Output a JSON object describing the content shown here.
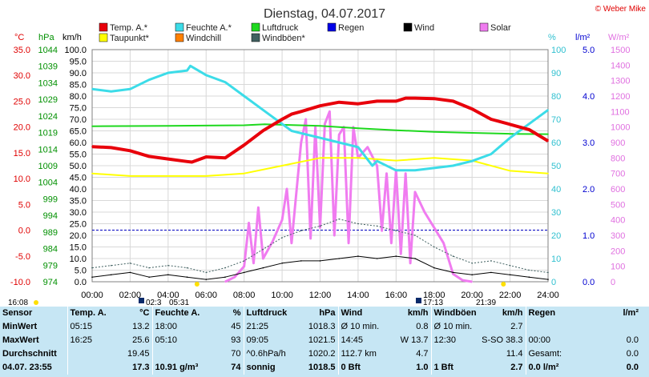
{
  "header": {
    "title": "Dienstag, 04.07.2017",
    "copyright": "© Weber Mike"
  },
  "legend": [
    {
      "label": "Temp. A.*",
      "color": "#e8000b"
    },
    {
      "label": "Feuchte A.*",
      "color": "#3cdce8"
    },
    {
      "label": "Luftdruck",
      "color": "#1ed81e"
    },
    {
      "label": "Regen",
      "color": "#0000e8"
    },
    {
      "label": "Wind",
      "color": "#000000"
    },
    {
      "label": "Solar",
      "color": "#f07cf0"
    },
    {
      "label": "Taupunkt*",
      "color": "#ffff00"
    },
    {
      "label": "Windchill",
      "color": "#ff8000"
    },
    {
      "label": "Windböen*",
      "color": "#406060"
    }
  ],
  "axes": {
    "temp_unit": "°C",
    "hpa_unit": "hPa",
    "kmh_unit": "km/h",
    "pct_unit": "%",
    "rain_unit": "l/m²",
    "solar_unit": "W/m²",
    "temp_ticks": [
      "35.0",
      "30.0",
      "25.0",
      "20.0",
      "15.0",
      "10.0",
      "5.0",
      "0.0",
      "-5.0",
      "-10.0"
    ],
    "hpa_ticks": [
      "1044",
      "1039",
      "1034",
      "1029",
      "1024",
      "1019",
      "1014",
      "1009",
      "1004",
      "999",
      "994",
      "989",
      "984",
      "979",
      "974"
    ],
    "kmh_ticks": [
      "100.0",
      "95.0",
      "90.0",
      "85.0",
      "80.0",
      "75.0",
      "70.0",
      "65.0",
      "60.0",
      "55.0",
      "50.0",
      "45.0",
      "40.0",
      "35.0",
      "30.0",
      "25.0",
      "20.0",
      "15.0",
      "10.0",
      "5.0",
      "0.0"
    ],
    "pct_ticks": [
      "100",
      "90",
      "80",
      "70",
      "60",
      "50",
      "40",
      "30",
      "20",
      "10",
      "0"
    ],
    "rain_ticks": [
      "5.0",
      "4.0",
      "3.0",
      "2.0",
      "1.0",
      "0.0"
    ],
    "solar_ticks": [
      "1500",
      "1400",
      "1300",
      "1200",
      "1100",
      "1000",
      "900",
      "800",
      "700",
      "600",
      "500",
      "400",
      "300",
      "200",
      "100",
      "0"
    ],
    "x_ticks": [
      "00:00",
      "02:00",
      "04:00",
      "06:00",
      "08:00",
      "10:00",
      "12:00",
      "14:00",
      "16:00",
      "18:00",
      "20:00",
      "22:00",
      "24:00"
    ]
  },
  "sun": {
    "sunrise": "05:31",
    "sunset": "21:39",
    "moonrise": "16:08",
    "moon1": "02:3",
    "moon2": "17:13"
  },
  "chart_data": {
    "type": "line",
    "x_unit": "hours",
    "x_range": [
      0,
      24
    ],
    "series": [
      {
        "name": "Temp. A.*",
        "axis": "°C",
        "ylim": [
          -10,
          35
        ],
        "x": [
          0,
          1,
          2,
          3,
          4,
          5,
          5.25,
          6,
          7,
          8,
          9,
          10,
          10.5,
          11,
          12,
          13,
          14,
          15,
          16,
          16.5,
          17,
          18,
          19,
          20,
          21,
          22,
          23,
          24
        ],
        "values": [
          16.2,
          16.0,
          15.4,
          14.3,
          13.8,
          13.3,
          13.2,
          14.2,
          14.0,
          16.5,
          19.3,
          21.5,
          22.5,
          23.0,
          24.1,
          24.8,
          24.5,
          25.0,
          25.0,
          25.6,
          25.6,
          25.5,
          25.0,
          23.5,
          21.5,
          20.5,
          19.5,
          17.3
        ]
      },
      {
        "name": "Feuchte A.*",
        "axis": "%",
        "ylim": [
          0,
          100
        ],
        "x": [
          0,
          1,
          2,
          3,
          4,
          5,
          5.17,
          6,
          7,
          8,
          9,
          10,
          10.5,
          11,
          12,
          13,
          14,
          14.75,
          15,
          16,
          17,
          18,
          19,
          20,
          21,
          22,
          22.5,
          23,
          24
        ],
        "values": [
          83,
          82,
          83,
          87,
          90,
          91,
          93,
          89,
          86,
          80,
          74,
          68,
          65,
          64,
          62,
          60,
          58,
          50,
          52,
          48,
          48,
          49,
          50,
          52,
          55,
          62,
          65,
          68,
          74
        ]
      },
      {
        "name": "Luftdruck",
        "axis": "hPa",
        "ylim": [
          974,
          1044
        ],
        "x": [
          0,
          4,
          8,
          9.08,
          12,
          14,
          16,
          18,
          20,
          22,
          24
        ],
        "values": [
          1020.9,
          1021.0,
          1021.2,
          1021.5,
          1021.0,
          1020.3,
          1019.7,
          1019.2,
          1018.9,
          1018.6,
          1018.5
        ]
      },
      {
        "name": "Taupunkt*",
        "axis": "°C",
        "ylim": [
          -10,
          35
        ],
        "x": [
          0,
          2,
          4,
          6,
          8,
          10,
          12,
          14,
          16,
          18,
          20,
          22,
          24
        ],
        "values": [
          11.0,
          10.5,
          10.5,
          10.5,
          11.0,
          12.5,
          14.0,
          14.0,
          13.5,
          14.0,
          13.5,
          11.5,
          11.0
        ]
      },
      {
        "name": "Wind",
        "axis": "km/h",
        "ylim": [
          0,
          100
        ],
        "x": [
          0,
          1,
          2,
          3,
          4,
          5,
          6,
          7,
          8,
          9,
          10,
          11,
          12,
          13,
          14,
          15,
          16,
          17,
          18,
          19,
          20,
          21,
          22,
          23,
          24
        ],
        "values": [
          2,
          3,
          4,
          2,
          3,
          2,
          1,
          2,
          4,
          6,
          8,
          9,
          9,
          10,
          11,
          10,
          11,
          10,
          6,
          4,
          3,
          4,
          3,
          2,
          1
        ]
      },
      {
        "name": "Windböen*",
        "axis": "km/h",
        "ylim": [
          0,
          100
        ],
        "x": [
          0,
          1,
          2,
          3,
          4,
          5,
          6,
          7,
          8,
          9,
          10,
          11,
          12,
          13,
          14,
          15,
          16,
          17,
          18,
          19,
          20,
          21,
          22,
          23,
          24
        ],
        "values": [
          6,
          7,
          8,
          6,
          7,
          6,
          4,
          6,
          9,
          14,
          19,
          22,
          24,
          27,
          25,
          24,
          22,
          20,
          15,
          11,
          8,
          9,
          7,
          5,
          4
        ]
      },
      {
        "name": "Solar",
        "axis": "W/m²",
        "ylim": [
          0,
          1500
        ],
        "x": [
          7,
          7.5,
          8,
          8.25,
          8.5,
          8.75,
          9,
          9.5,
          10,
          10.25,
          10.5,
          11,
          11.25,
          11.5,
          11.75,
          12,
          12.25,
          12.5,
          12.75,
          13,
          13.25,
          13.5,
          13.75,
          14,
          14.5,
          15,
          15.25,
          15.5,
          15.75,
          16,
          16.25,
          16.5,
          16.75,
          17,
          17.5,
          18,
          18.5,
          19,
          19.5,
          20
        ],
        "values": [
          0,
          30,
          100,
          380,
          120,
          480,
          150,
          260,
          400,
          600,
          250,
          900,
          1050,
          280,
          1000,
          350,
          1020,
          1100,
          300,
          950,
          1000,
          250,
          1000,
          800,
          870,
          750,
          330,
          700,
          250,
          720,
          180,
          700,
          120,
          580,
          450,
          350,
          250,
          50,
          10,
          0
        ]
      }
    ]
  },
  "stats": {
    "headers": [
      "Sensor",
      "Temp. A.",
      "°C",
      "Feuchte A.",
      "%",
      "Luftdruck",
      "hPa",
      "Wind",
      "km/h",
      "Windböen",
      "km/h",
      "Regen",
      "l/m²"
    ],
    "rows": [
      [
        "MinWert",
        "05:15",
        "13.2",
        "18:00",
        "45",
        "21:25",
        "1018.3",
        "Ø 10 min.",
        "0.8",
        "Ø 10 min.",
        "2.7",
        "",
        ""
      ],
      [
        "MaxWert",
        "16:25",
        "25.6",
        "05:10",
        "93",
        "09:05",
        "1021.5",
        "14:45",
        "W 13.7",
        "12:30",
        "S-SO 38.3",
        "00:00",
        "0.0"
      ],
      [
        "Durchschnitt",
        "",
        "19.45",
        "",
        "70",
        "^0.6hPa/h",
        "1020.2",
        "112.7 km",
        "4.7",
        "",
        "11.4",
        "Gesamt:",
        "0.0"
      ],
      [
        "04.07. 23:55",
        "",
        "17.3",
        "10.91 g/m³",
        "74",
        "sonnig",
        "1018.5",
        "0 Bft",
        "1.0",
        "1 Bft",
        "2.7",
        "0.0 l/m²",
        "0.0"
      ]
    ]
  }
}
